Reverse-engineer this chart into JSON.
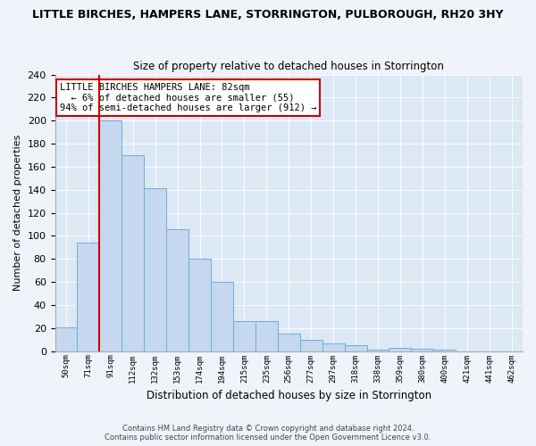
{
  "title": "LITTLE BIRCHES, HAMPERS LANE, STORRINGTON, PULBOROUGH, RH20 3HY",
  "subtitle": "Size of property relative to detached houses in Storrington",
  "xlabel": "Distribution of detached houses by size in Storrington",
  "ylabel": "Number of detached properties",
  "bar_labels": [
    "50sqm",
    "71sqm",
    "91sqm",
    "112sqm",
    "132sqm",
    "153sqm",
    "174sqm",
    "194sqm",
    "215sqm",
    "235sqm",
    "256sqm",
    "277sqm",
    "297sqm",
    "318sqm",
    "338sqm",
    "359sqm",
    "380sqm",
    "400sqm",
    "421sqm",
    "441sqm",
    "462sqm"
  ],
  "bar_values": [
    21,
    94,
    200,
    170,
    141,
    106,
    80,
    60,
    26,
    26,
    15,
    10,
    7,
    5,
    1,
    3,
    2,
    1,
    0,
    0,
    0
  ],
  "bar_color": "#c5d8f0",
  "bar_edge_color": "#6baed6",
  "ylim": [
    0,
    240
  ],
  "yticks": [
    0,
    20,
    40,
    60,
    80,
    100,
    120,
    140,
    160,
    180,
    200,
    220,
    240
  ],
  "vline_color": "#cc0000",
  "annotation_title": "LITTLE BIRCHES HAMPERS LANE: 82sqm",
  "annotation_line1": "← 6% of detached houses are smaller (55)",
  "annotation_line2": "94% of semi-detached houses are larger (912) →",
  "annotation_box_color": "#ffffff",
  "annotation_box_edge": "#cc0000",
  "footer1": "Contains HM Land Registry data © Crown copyright and database right 2024.",
  "footer2": "Contains public sector information licensed under the Open Government Licence v3.0.",
  "bg_color": "#f0f4fa",
  "plot_bg_color": "#dde8f5"
}
